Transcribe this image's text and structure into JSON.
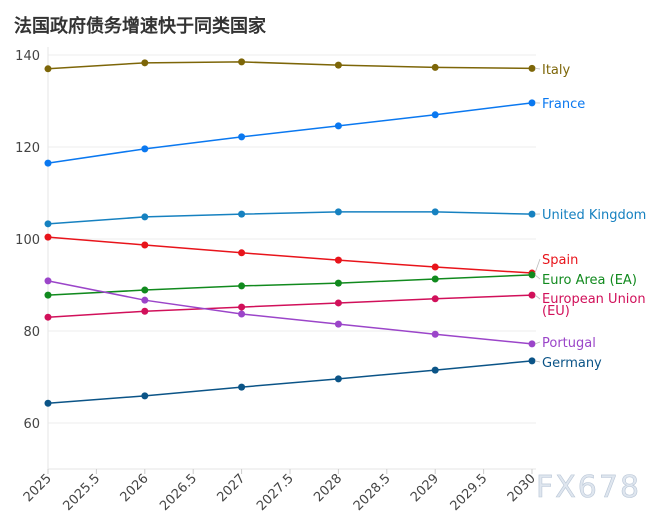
{
  "title": "法国政府债务增速快于同类国家",
  "watermark": "FX678",
  "chart_data": {
    "type": "line",
    "title": "法国政府债务增速快于同类国家",
    "xlabel": "",
    "ylabel": "",
    "x": [
      2025,
      2026,
      2027,
      2028,
      2029,
      2030
    ],
    "xlim": [
      2025,
      2030
    ],
    "ylim": [
      50,
      142
    ],
    "x_ticks": [
      "2025",
      "2025.5",
      "2026",
      "2026.5",
      "2027",
      "2027.5",
      "2028",
      "2028.5",
      "2029",
      "2029.5",
      "2030"
    ],
    "y_ticks": [
      "60",
      "80",
      "100",
      "120",
      "140"
    ],
    "grid": true,
    "legend": "end-of-line labels (right)",
    "series": [
      {
        "name": "Italy",
        "color": "#7d6608",
        "values": [
          137.0,
          138.3,
          138.5,
          137.8,
          137.3,
          137.1
        ]
      },
      {
        "name": "France",
        "color": "#0a78f0",
        "values": [
          116.5,
          119.6,
          122.2,
          124.6,
          127.0,
          129.6
        ]
      },
      {
        "name": "United Kingdom",
        "color": "#1681c0",
        "values": [
          103.3,
          104.8,
          105.4,
          105.9,
          105.9,
          105.4
        ]
      },
      {
        "name": "Spain",
        "color": "#e8141b",
        "values": [
          100.4,
          98.7,
          97.0,
          95.4,
          93.9,
          92.6
        ]
      },
      {
        "name": "Euro Area (EA)",
        "color": "#118a1e",
        "values": [
          87.8,
          88.9,
          89.8,
          90.4,
          91.3,
          92.2
        ]
      },
      {
        "name": "European Union (EU)",
        "color": "#d1105a",
        "values": [
          83.0,
          84.3,
          85.2,
          86.1,
          87.0,
          87.8
        ]
      },
      {
        "name": "Portugal",
        "color": "#9b45c9",
        "values": [
          90.9,
          86.7,
          83.7,
          81.5,
          79.3,
          77.2
        ]
      },
      {
        "name": "Germany",
        "color": "#0b5487",
        "values": [
          64.3,
          65.9,
          67.8,
          69.6,
          71.5,
          73.5
        ]
      }
    ]
  }
}
